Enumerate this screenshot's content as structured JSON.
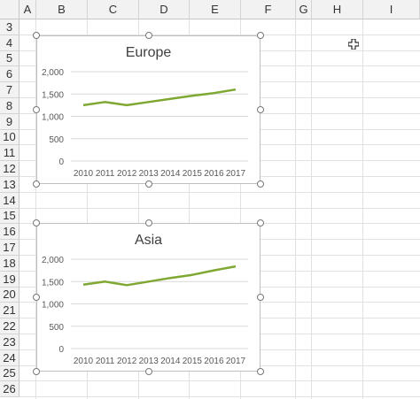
{
  "columns": [
    "A",
    "B",
    "C",
    "D",
    "E",
    "F",
    "G",
    "H",
    "I"
  ],
  "rows": [
    "3",
    "4",
    "5",
    "6",
    "7",
    "8",
    "9",
    "10",
    "11",
    "12",
    "13",
    "14",
    "15",
    "16",
    "17",
    "18",
    "19",
    "20",
    "21",
    "22",
    "23",
    "24",
    "25",
    "26"
  ],
  "charts": [
    {
      "title": "Europe",
      "chart_data": {
        "type": "line",
        "title": "Europe",
        "categories": [
          "2010",
          "2011",
          "2012",
          "2013",
          "2014",
          "2015",
          "2016",
          "2017"
        ],
        "values": [
          1250,
          1320,
          1250,
          1320,
          1390,
          1460,
          1520,
          1600
        ],
        "yticks": [
          "0",
          "500",
          "1,000",
          "1,500",
          "2,000"
        ],
        "ylim": [
          0,
          2000
        ],
        "color": "#7fa832"
      }
    },
    {
      "title": "Asia",
      "chart_data": {
        "type": "line",
        "title": "Asia",
        "categories": [
          "2010",
          "2011",
          "2012",
          "2013",
          "2014",
          "2015",
          "2016",
          "2017"
        ],
        "values": [
          1430,
          1500,
          1420,
          1500,
          1580,
          1650,
          1750,
          1840
        ],
        "yticks": [
          "0",
          "500",
          "1,000",
          "1,500",
          "2,000"
        ],
        "ylim": [
          0,
          2000
        ],
        "color": "#7fa832"
      }
    }
  ],
  "grid_color": "#d9d9d9",
  "cursor_icon": "plus-cursor-icon"
}
